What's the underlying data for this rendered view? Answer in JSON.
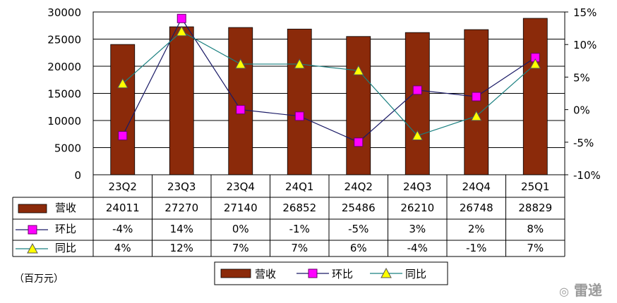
{
  "chart_data": {
    "type": "bar",
    "categories": [
      "23Q2",
      "23Q3",
      "23Q4",
      "24Q1",
      "24Q2",
      "24Q3",
      "24Q4",
      "25Q1"
    ],
    "unit_label": "（百万元）",
    "y_left": {
      "ylim": [
        0,
        30000
      ],
      "ticks": [
        "30000",
        "25000",
        "20000",
        "15000",
        "10000",
        "5000",
        "0"
      ]
    },
    "y_right": {
      "ylim": [
        -10,
        15
      ],
      "ticks": [
        "15%",
        "10%",
        "5%",
        "0%",
        "-5%",
        "-10%"
      ]
    },
    "series": [
      {
        "name": "营收",
        "kind": "bar",
        "axis": "left",
        "color": "#8b2a0a",
        "values": [
          24011,
          27270,
          27140,
          26852,
          25486,
          26210,
          26748,
          28829
        ],
        "labels": [
          "24011",
          "27270",
          "27140",
          "26852",
          "25486",
          "26210",
          "26748",
          "28829"
        ]
      },
      {
        "name": "环比",
        "kind": "line",
        "axis": "right",
        "color": "#ff00ff",
        "line_color": "#1a1a66",
        "values": [
          -4,
          14,
          0,
          -1,
          -5,
          3,
          2,
          8
        ],
        "labels": [
          "-4%",
          "14%",
          "0%",
          "-1%",
          "-5%",
          "3%",
          "2%",
          "8%"
        ]
      },
      {
        "name": "同比",
        "kind": "line",
        "axis": "right",
        "color": "#ffff00",
        "line_color": "#1a8080",
        "values": [
          4,
          12,
          7,
          7,
          6,
          -4,
          -1,
          7
        ],
        "labels": [
          "4%",
          "12%",
          "7%",
          "7%",
          "6%",
          "-4%",
          "-1%",
          "7%"
        ]
      }
    ],
    "legend_position": "bottom"
  },
  "watermark": "雷递"
}
